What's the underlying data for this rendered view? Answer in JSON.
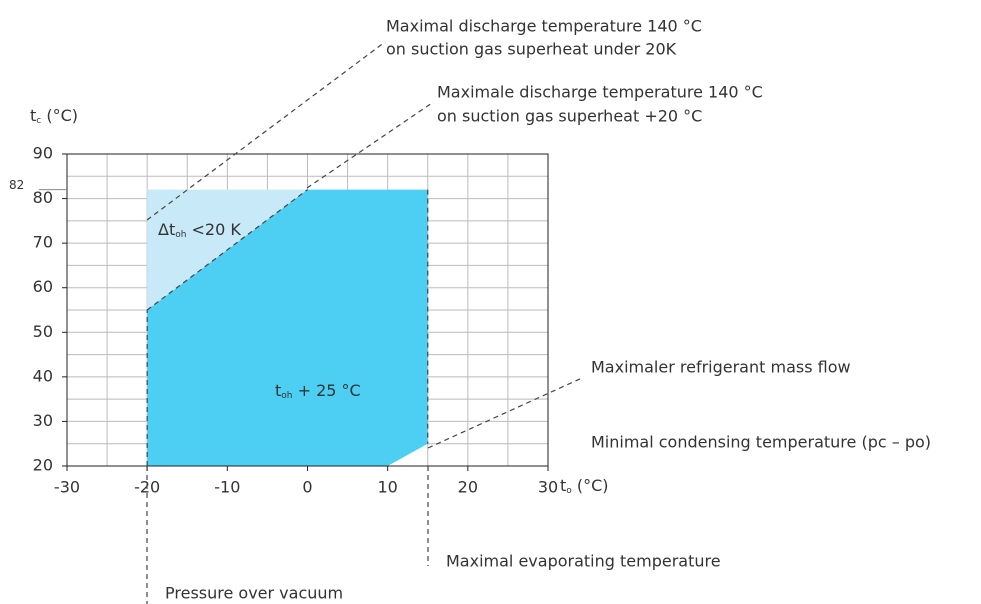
{
  "chart_data": {
    "type": "envelope",
    "x_label": {
      "main": "t",
      "sub": "o",
      "rest": " (°C)"
    },
    "y_label": {
      "main": "t",
      "sub": "c",
      "rest": " (°C)"
    },
    "xlim": [
      -30,
      30
    ],
    "xticks": [
      -30,
      -20,
      -10,
      0,
      10,
      20,
      30
    ],
    "ylim": [
      20,
      90
    ],
    "yticks": [
      20,
      30,
      40,
      50,
      60,
      70,
      80,
      90
    ],
    "ytick_extra": 82,
    "grid_step": 5,
    "grid": true,
    "envelope": {
      "color": "#4dcff3",
      "x": [
        -20,
        0,
        15,
        15,
        10,
        -20
      ],
      "y": [
        55,
        82,
        82,
        25,
        20,
        20
      ]
    },
    "extension": {
      "color": "#c8eaf8",
      "x": [
        -20,
        -20,
        0
      ],
      "y": [
        55,
        82,
        82
      ]
    },
    "region_labels": [
      {
        "main": "Δt",
        "sub": "oh",
        "rest": " <20 K"
      },
      {
        "main": "t",
        "sub": "oh",
        "rest": " + 25 °C"
      }
    ],
    "annotations": [
      "Maximal discharge temperature 140 °C",
      "on suction gas superheat under 20K",
      "Maximale discharge temperature 140 °C",
      "on suction gas superheat +20 °C",
      "Maximaler refrigerant mass flow",
      "Minimal condensing temperature (pc – po)",
      "Maximal evaporating temperature",
      "Pressure over vacuum"
    ]
  }
}
